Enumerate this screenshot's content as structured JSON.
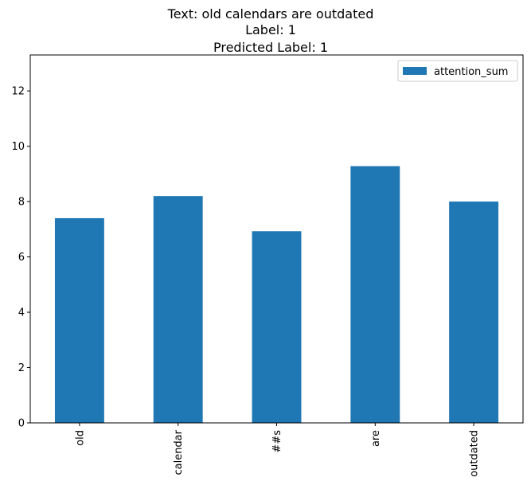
{
  "chart_data": {
    "type": "bar",
    "title_lines": [
      "Text: old calendars are outdated",
      "Label: 1",
      "Predicted Label: 1"
    ],
    "categories": [
      "old",
      "calendar",
      "##s",
      "are",
      "outdated"
    ],
    "series": [
      {
        "name": "attention_sum",
        "values": [
          7.4,
          8.2,
          6.93,
          9.28,
          8.0
        ]
      }
    ],
    "xlabel": "",
    "ylabel": "",
    "ylim": [
      0,
      13.3
    ],
    "yticks": [
      0,
      2,
      4,
      6,
      8,
      10,
      12
    ],
    "grid": false,
    "legend_position": "top-right",
    "colors": {
      "bar": "#1f77b4"
    }
  }
}
